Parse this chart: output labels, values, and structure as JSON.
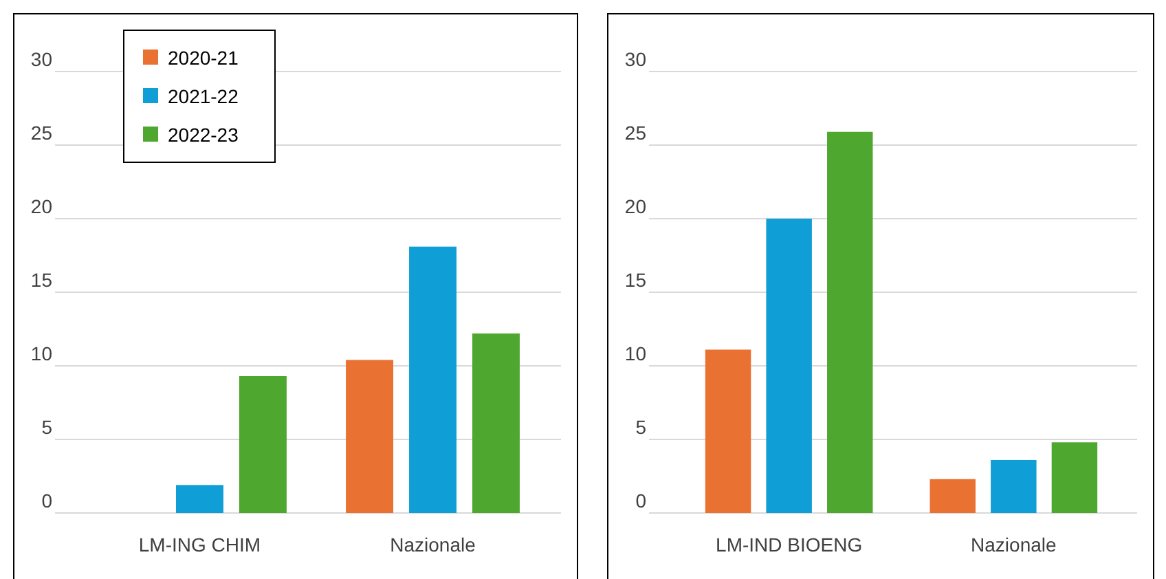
{
  "chart_data": [
    {
      "type": "bar",
      "categories": [
        "LM-ING CHIM",
        "Nazionale"
      ],
      "series": [
        {
          "name": "2020-21",
          "color": "#e97132",
          "values": [
            0,
            10.4
          ]
        },
        {
          "name": "2021-22",
          "color": "#0f9ed5",
          "values": [
            1.9,
            18.1
          ]
        },
        {
          "name": "2022-23",
          "color": "#4ea72e",
          "values": [
            9.3,
            12.2
          ]
        }
      ],
      "ylim": [
        0,
        30
      ],
      "yticks": [
        0,
        5,
        10,
        15,
        20,
        25,
        30
      ],
      "grid": "y",
      "legend": "top left"
    },
    {
      "type": "bar",
      "categories": [
        "LM-IND BIOENG",
        "Nazionale"
      ],
      "series": [
        {
          "color": "#e97132",
          "values": [
            11.1,
            2.3
          ]
        },
        {
          "color": "#0f9ed5",
          "values": [
            20,
            3.6
          ]
        },
        {
          "color": "#4ea72e",
          "values": [
            25.9,
            4.8
          ]
        }
      ],
      "ylim": [
        0,
        30
      ],
      "yticks": [
        0,
        5,
        10,
        15,
        20,
        25,
        30
      ],
      "grid": "y",
      "legend": false
    }
  ]
}
